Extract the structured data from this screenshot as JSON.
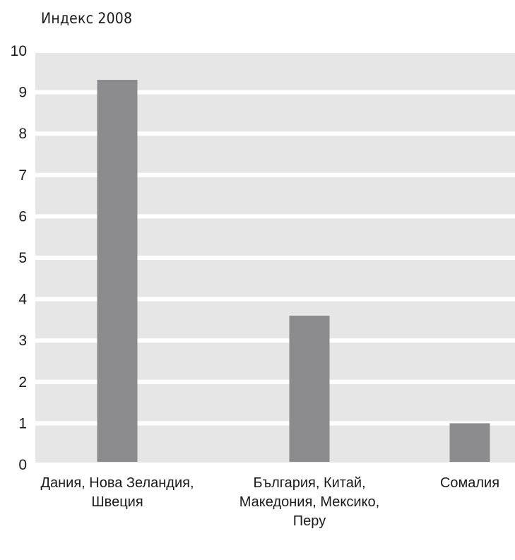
{
  "chart_data": {
    "type": "bar",
    "title": "Индекс  2008",
    "xlabel": "",
    "ylabel": "",
    "ylim": [
      0,
      10
    ],
    "yticks": [
      0,
      1,
      2,
      3,
      4,
      5,
      6,
      7,
      8,
      9,
      10
    ],
    "grid": true,
    "legend": "none",
    "categories": [
      [
        "Дания,  Нова Зеландия,",
        "Швеция"
      ],
      [
        "България,  Китай,",
        "Македония,  Мексико,",
        "Перу"
      ],
      [
        "Сомалия"
      ]
    ],
    "values": [
      9.3,
      3.6,
      1.0
    ],
    "colors": {
      "plot_background": "#e6e6e6",
      "gridline": "#ffffff",
      "bar": "#8c8c8e",
      "text": "#1a1a1a"
    }
  }
}
